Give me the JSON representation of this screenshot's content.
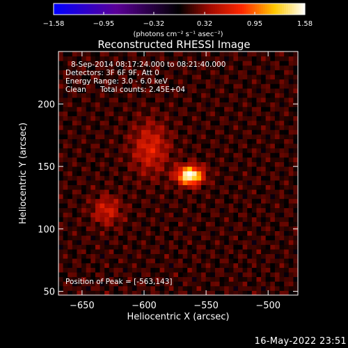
{
  "chart_data": {
    "type": "heatmap",
    "title": "Reconstructed RHESSI Image",
    "xlabel": "Heliocentric X (arcsec)",
    "ylabel": "Heliocentric Y (arcsec)",
    "xlim": [
      -669,
      -476
    ],
    "ylim": [
      47,
      242
    ],
    "x_ticks": [
      -650,
      -600,
      -550,
      -500
    ],
    "x_tick_labels": [
      "−650",
      "−600",
      "−550",
      "−500"
    ],
    "y_ticks": [
      50,
      100,
      150,
      200
    ],
    "y_tick_labels": [
      "50",
      "100",
      "150",
      "200"
    ],
    "colorbar": {
      "min": -1.58,
      "max": 1.58,
      "ticks": [
        -1.58,
        -0.95,
        -0.32,
        0.32,
        0.95,
        1.58
      ],
      "tick_labels": [
        "−1.58",
        "−0.95",
        "−0.32",
        "0.32",
        "0.95",
        "1.58"
      ],
      "units": "(photons cm⁻² s⁻¹ asec⁻²)",
      "colormap": "blue-purple-red-yellow-white"
    },
    "annotations": {
      "time_range": "8-Sep-2014 08:17:24.000 to 08:21:40.000",
      "detectors": "Detectors: 3F 6F 9F, Att 0",
      "energy_range": "Energy Range: 3.0 - 6.0 keV",
      "method": "Clean",
      "total_counts": "Total counts: 2.45E+04",
      "peak_position": "Position of Peak = [-563,143]"
    },
    "sources": [
      {
        "x": -563,
        "y": 143,
        "peak": 1.58,
        "sigma_x": 7,
        "sigma_y": 5
      },
      {
        "x": -595,
        "y": 165,
        "peak": 0.5,
        "sigma_x": 10,
        "sigma_y": 14
      },
      {
        "x": -630,
        "y": 115,
        "peak": 0.45,
        "sigma_x": 8,
        "sigma_y": 8
      }
    ],
    "grid": false
  },
  "footer": {
    "timestamp": "16-May-2022 23:51"
  },
  "colors": {
    "background": "#000000",
    "foreground": "#ffffff"
  }
}
